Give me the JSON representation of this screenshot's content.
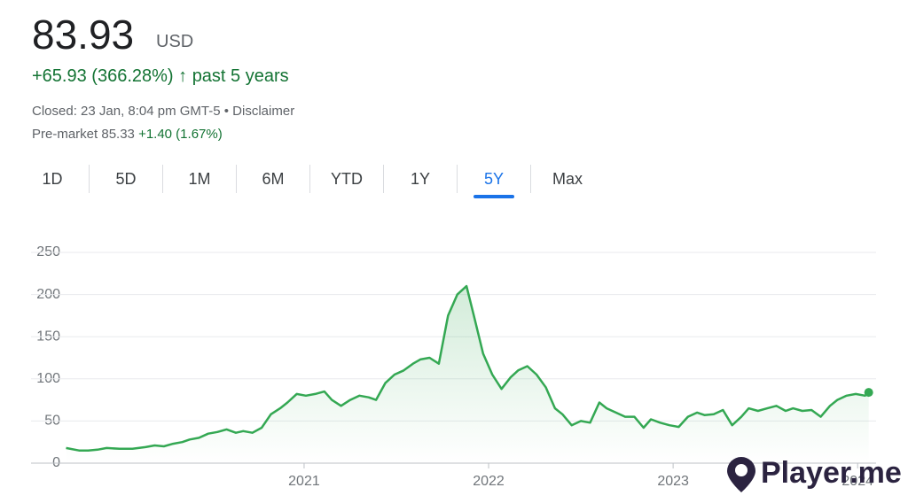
{
  "header": {
    "price": "83.93",
    "currency": "USD",
    "change": "+65.93 (366.28%)",
    "arrow": "↑",
    "period": "past 5 years",
    "closed": "Closed: 23 Jan, 8:04 pm GMT-5 • Disclaimer",
    "premarket_label": "Pre-market 85.33",
    "premarket_change": "+1.40 (1.67%)"
  },
  "tabs": [
    "1D",
    "5D",
    "1M",
    "6M",
    "YTD",
    "1Y",
    "5Y",
    "Max"
  ],
  "watermark": "Player.me",
  "chart_data": {
    "type": "line",
    "color": "#34a853",
    "x": [
      2019.71,
      2019.78,
      2019.83,
      2019.88,
      2019.93,
      2020.0,
      2020.07,
      2020.14,
      2020.19,
      2020.24,
      2020.29,
      2020.34,
      2020.38,
      2020.43,
      2020.48,
      2020.53,
      2020.58,
      2020.63,
      2020.67,
      2020.72,
      2020.77,
      2020.82,
      2020.87,
      2020.91,
      2020.96,
      2021.01,
      2021.06,
      2021.11,
      2021.15,
      2021.2,
      2021.25,
      2021.3,
      2021.35,
      2021.39,
      2021.44,
      2021.49,
      2021.54,
      2021.59,
      2021.63,
      2021.68,
      2021.73,
      2021.78,
      2021.83,
      2021.88,
      2021.92,
      2021.97,
      2022.02,
      2022.07,
      2022.12,
      2022.16,
      2022.21,
      2022.26,
      2022.31,
      2022.36,
      2022.4,
      2022.45,
      2022.5,
      2022.55,
      2022.6,
      2022.64,
      2022.69,
      2022.74,
      2022.79,
      2022.84,
      2022.88,
      2022.93,
      2022.98,
      2023.03,
      2023.08,
      2023.13,
      2023.17,
      2023.22,
      2023.27,
      2023.32,
      2023.37,
      2023.41,
      2023.46,
      2023.51,
      2023.56,
      2023.61,
      2023.65,
      2023.7,
      2023.75,
      2023.8,
      2023.85,
      2023.89,
      2023.94,
      2023.99,
      2024.04,
      2024.06
    ],
    "values": [
      18,
      15,
      15,
      16,
      18,
      17,
      17,
      19,
      21,
      20,
      23,
      25,
      28,
      30,
      35,
      37,
      40,
      36,
      38,
      36,
      42,
      58,
      65,
      72,
      82,
      80,
      82,
      85,
      75,
      68,
      75,
      80,
      78,
      75,
      95,
      105,
      110,
      118,
      123,
      125,
      118,
      175,
      200,
      210,
      175,
      130,
      105,
      88,
      102,
      110,
      115,
      105,
      90,
      65,
      58,
      45,
      50,
      48,
      72,
      65,
      60,
      55,
      55,
      42,
      52,
      48,
      45,
      43,
      55,
      60,
      57,
      58,
      63,
      45,
      55,
      65,
      62,
      65,
      68,
      62,
      65,
      62,
      63,
      55,
      68,
      75,
      80,
      82,
      80,
      83.93
    ],
    "xlim": [
      2019.52,
      2024.1
    ],
    "xticks": [
      2021,
      2022,
      2023,
      2024
    ],
    "ylim": [
      0,
      250
    ],
    "yticks": [
      0,
      50,
      100,
      150,
      200,
      250
    ],
    "grid": true
  }
}
